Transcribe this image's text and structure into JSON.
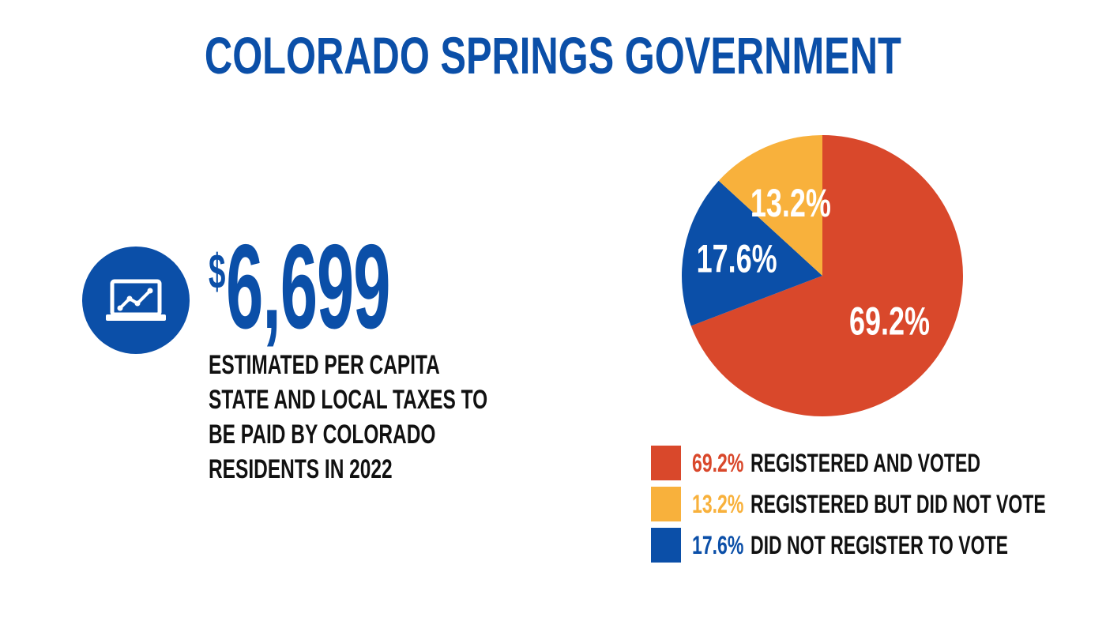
{
  "title": "COLORADO SPRINGS GOVERNMENT",
  "stat": {
    "icon": "laptop-chart-icon",
    "currency": "$",
    "amount": "6,699",
    "description_lines": [
      "ESTIMATED PER CAPITA",
      "STATE AND LOCAL TAXES TO",
      "BE PAID BY COLORADO",
      "RESIDENTS IN 2022"
    ]
  },
  "colors": {
    "accent_blue": "#0b4fa8",
    "registered_voted": "#d9482b",
    "registered_not_voted": "#f8b13c",
    "not_registered": "#0b4fa8"
  },
  "chart_data": {
    "type": "pie",
    "slices": [
      {
        "label": "REGISTERED AND VOTED",
        "value": 69.2,
        "display": "69.2%",
        "color": "#d9482b"
      },
      {
        "label": "DID NOT REGISTER TO VOTE",
        "value": 17.6,
        "display": "17.6%",
        "color": "#0b4fa8"
      },
      {
        "label": "REGISTERED BUT DID NOT VOTE",
        "value": 13.2,
        "display": "13.2%",
        "color": "#f8b13c"
      }
    ],
    "legend": [
      {
        "pct": "69.2%",
        "label": "REGISTERED AND VOTED",
        "color": "#d9482b"
      },
      {
        "pct": "13.2%",
        "label": "REGISTERED BUT DID NOT VOTE",
        "color": "#f8b13c"
      },
      {
        "pct": "17.6%",
        "label": "DID NOT REGISTER TO VOTE",
        "color": "#0b4fa8"
      }
    ],
    "legend_placement": "bottom"
  }
}
